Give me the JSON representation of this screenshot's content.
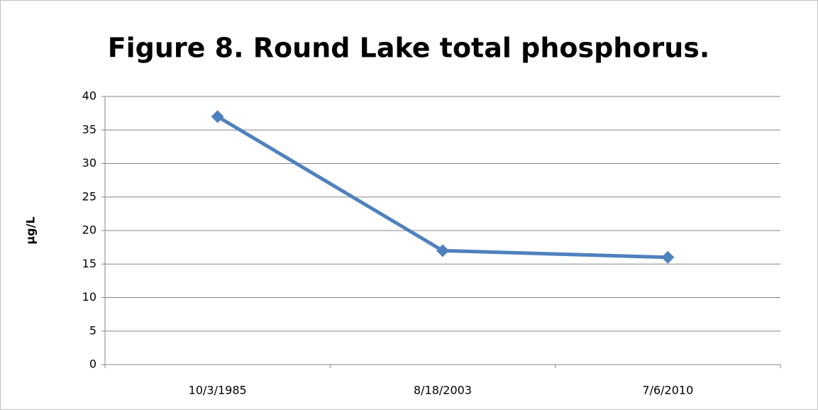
{
  "chart_data": {
    "type": "line",
    "title": "Figure 8. Round Lake total phosphorus.",
    "y_label": "µg/L",
    "categories": [
      "10/3/1985",
      "8/18/2003",
      "7/6/2010"
    ],
    "values": [
      37,
      17,
      16
    ],
    "color": "#4f81bd",
    "ylim": [
      0,
      40
    ],
    "yticks": [
      0,
      5,
      10,
      15,
      20,
      25,
      30,
      35,
      40
    ],
    "grid": true
  }
}
